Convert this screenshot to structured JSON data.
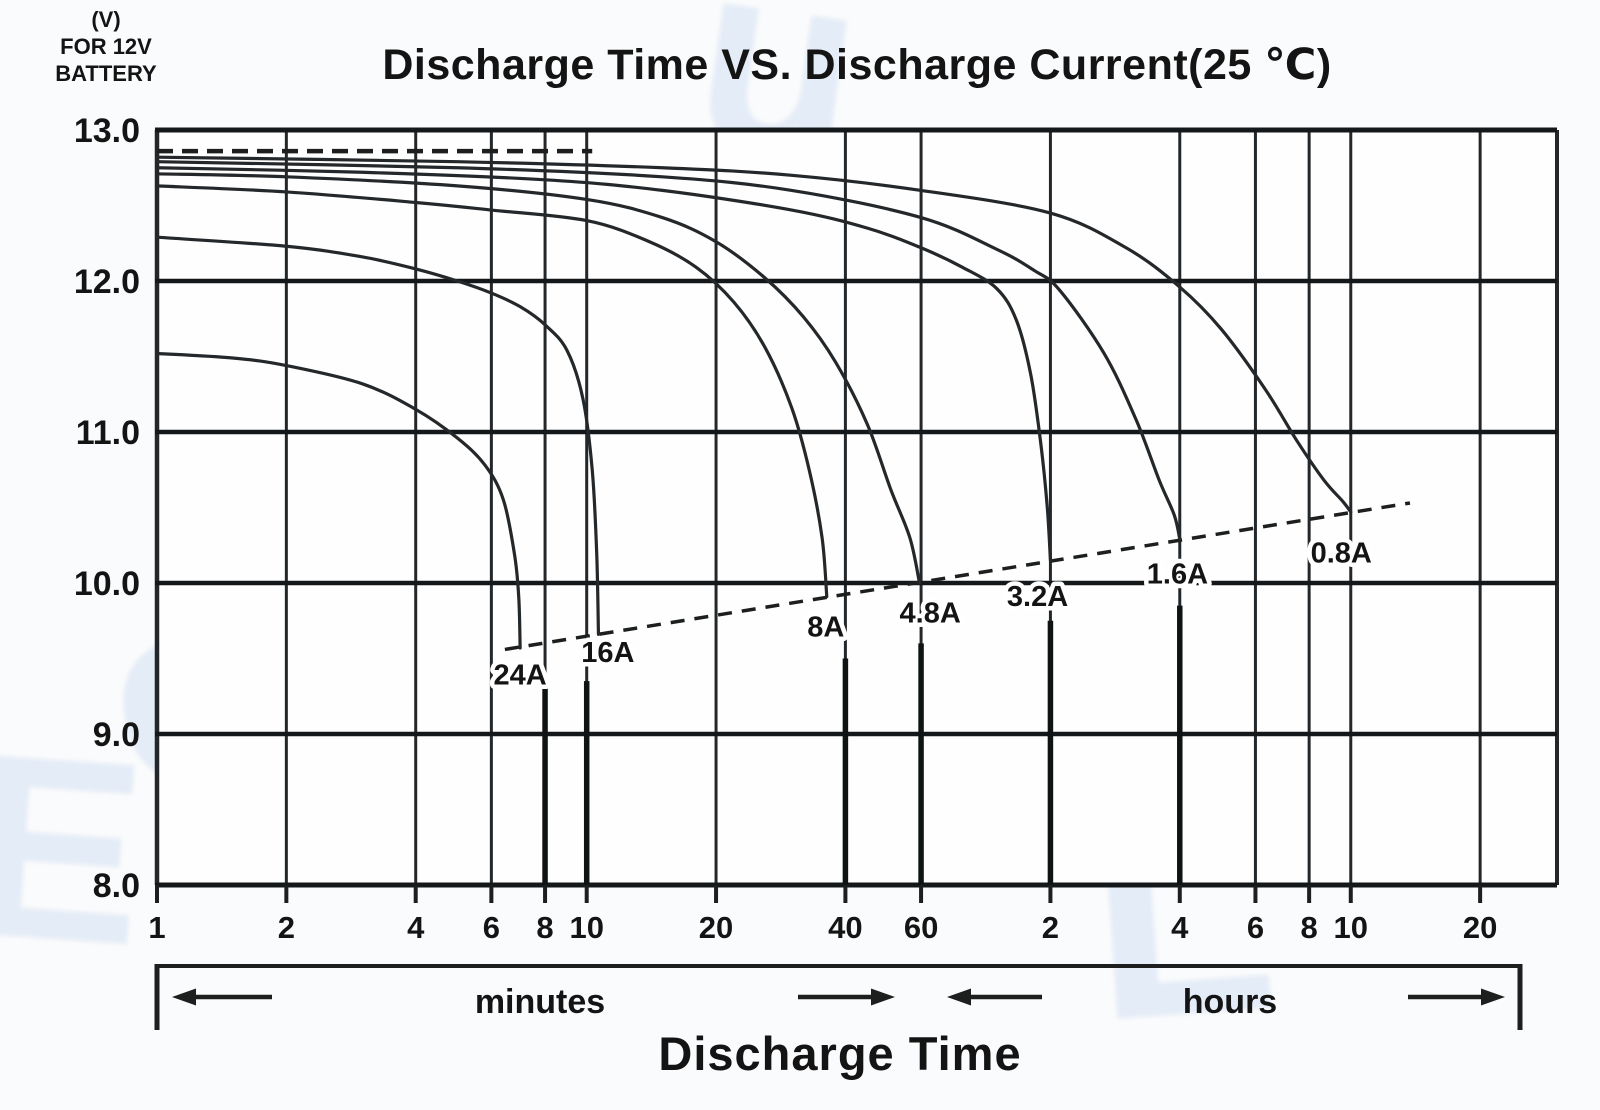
{
  "title": "Discharge Time VS. Discharge Current(25 ℃)",
  "y_axis": {
    "unit_lines": [
      "(V)",
      "FOR 12V",
      "BATTERY"
    ],
    "tick_labels": [
      "13.0",
      "12.0",
      "11.0",
      "10.0",
      "9.0",
      "8.0"
    ],
    "tick_values": [
      13.0,
      12.0,
      11.0,
      10.0,
      9.0,
      8.0
    ],
    "v_min": 8.0,
    "v_max": 13.0
  },
  "x_axis": {
    "title": "Discharge Time",
    "section_labels": {
      "minutes": "minutes",
      "hours": "hours"
    },
    "minute_ticks": [
      {
        "t": 1,
        "label": "1"
      },
      {
        "t": 2,
        "label": "2"
      },
      {
        "t": 4,
        "label": "4"
      },
      {
        "t": 6,
        "label": "6"
      },
      {
        "t": 8,
        "label": "8"
      },
      {
        "t": 10,
        "label": "10"
      },
      {
        "t": 20,
        "label": "20"
      },
      {
        "t": 40,
        "label": "40"
      },
      {
        "t": 60,
        "label": "60"
      }
    ],
    "hour_ticks": [
      {
        "t": 120,
        "label": "2"
      },
      {
        "t": 240,
        "label": "4"
      },
      {
        "t": 360,
        "label": "6"
      },
      {
        "t": 480,
        "label": "8"
      },
      {
        "t": 600,
        "label": "10"
      },
      {
        "t": 1200,
        "label": "20"
      }
    ]
  },
  "chart_data": {
    "type": "line",
    "x_scale": "log",
    "x_unit": "minutes",
    "x_range_minutes": [
      1,
      1810
    ],
    "y_unit": "V (for 12V battery)",
    "y_range": [
      8.0,
      13.0
    ],
    "grid": true,
    "series": [
      {
        "name": "24A",
        "label": "24A",
        "label_t": 7.0,
        "label_v": 9.4,
        "points": [
          [
            1,
            11.52
          ],
          [
            1.5,
            11.49
          ],
          [
            2,
            11.44
          ],
          [
            3,
            11.32
          ],
          [
            4,
            11.15
          ],
          [
            5,
            10.96
          ],
          [
            5.8,
            10.78
          ],
          [
            6.4,
            10.55
          ],
          [
            6.8,
            10.18
          ],
          [
            6.95,
            9.9
          ],
          [
            7.0,
            9.57
          ]
        ]
      },
      {
        "name": "16A",
        "label": "16A",
        "label_t": 11.2,
        "label_v": 9.55,
        "points": [
          [
            1,
            12.29
          ],
          [
            2,
            12.23
          ],
          [
            3,
            12.16
          ],
          [
            4,
            12.08
          ],
          [
            5,
            12.0
          ],
          [
            6,
            11.92
          ],
          [
            7,
            11.83
          ],
          [
            8,
            11.71
          ],
          [
            9,
            11.54
          ],
          [
            9.8,
            11.22
          ],
          [
            10.3,
            10.75
          ],
          [
            10.55,
            10.2
          ],
          [
            10.65,
            9.66
          ]
        ]
      },
      {
        "name": "8A",
        "label": "8A",
        "label_t": 36,
        "label_v": 9.72,
        "points": [
          [
            1,
            12.63
          ],
          [
            2,
            12.59
          ],
          [
            4,
            12.52
          ],
          [
            6,
            12.47
          ],
          [
            10,
            12.4
          ],
          [
            14,
            12.26
          ],
          [
            18,
            12.09
          ],
          [
            22,
            11.86
          ],
          [
            26,
            11.56
          ],
          [
            30,
            11.16
          ],
          [
            33,
            10.74
          ],
          [
            35.3,
            10.3
          ],
          [
            36.2,
            9.91
          ]
        ]
      },
      {
        "name": "4.8A",
        "label": "4.8A",
        "label_t": 63,
        "label_v": 9.81,
        "points": [
          [
            1,
            12.71
          ],
          [
            2,
            12.69
          ],
          [
            5,
            12.63
          ],
          [
            10,
            12.54
          ],
          [
            15,
            12.42
          ],
          [
            20,
            12.26
          ],
          [
            26,
            12.02
          ],
          [
            32,
            11.76
          ],
          [
            38,
            11.46
          ],
          [
            45,
            11.05
          ],
          [
            51,
            10.62
          ],
          [
            56.5,
            10.3
          ],
          [
            59.5,
            10.0
          ]
        ]
      },
      {
        "name": "3.2A",
        "label": "3.2A",
        "label_t": 112,
        "label_v": 9.92,
        "points": [
          [
            1,
            12.75
          ],
          [
            3,
            12.72
          ],
          [
            8,
            12.67
          ],
          [
            15,
            12.6
          ],
          [
            30,
            12.47
          ],
          [
            45,
            12.35
          ],
          [
            60,
            12.22
          ],
          [
            75,
            12.09
          ],
          [
            90,
            11.95
          ],
          [
            100,
            11.74
          ],
          [
            108,
            11.38
          ],
          [
            114,
            10.92
          ],
          [
            118,
            10.5
          ],
          [
            120,
            10.15
          ]
        ]
      },
      {
        "name": "1.6A",
        "label": "1.6A",
        "label_t": 237,
        "label_v": 10.07,
        "points": [
          [
            1,
            12.79
          ],
          [
            5,
            12.75
          ],
          [
            15,
            12.69
          ],
          [
            30,
            12.6
          ],
          [
            60,
            12.42
          ],
          [
            90,
            12.21
          ],
          [
            110,
            12.07
          ],
          [
            126,
            11.94
          ],
          [
            160,
            11.52
          ],
          [
            190,
            11.08
          ],
          [
            215,
            10.68
          ],
          [
            233,
            10.45
          ],
          [
            240,
            10.29
          ]
        ]
      },
      {
        "name": "0.8A",
        "label": "0.8A",
        "label_t": 570,
        "label_v": 10.21,
        "points": [
          [
            1,
            12.82
          ],
          [
            5,
            12.79
          ],
          [
            15,
            12.75
          ],
          [
            30,
            12.7
          ],
          [
            60,
            12.6
          ],
          [
            120,
            12.45
          ],
          [
            180,
            12.22
          ],
          [
            240,
            11.96
          ],
          [
            300,
            11.68
          ],
          [
            380,
            11.28
          ],
          [
            450,
            10.94
          ],
          [
            520,
            10.68
          ],
          [
            575,
            10.54
          ],
          [
            600,
            10.47
          ]
        ]
      }
    ],
    "cutoff_dashed_line": {
      "points": [
        [
          6.45,
          9.56
        ],
        [
          824,
          10.53
        ]
      ]
    },
    "top_dashed_line": {
      "v": 12.86,
      "t_start": 1,
      "t_end": 10.3
    },
    "emphasis_ticks": [
      {
        "t": 8,
        "v_top": 9.35
      },
      {
        "t": 10,
        "v_top": 9.35
      },
      {
        "t": 40,
        "v_top": 9.5
      },
      {
        "t": 60,
        "v_top": 9.6
      },
      {
        "t": 120,
        "v_top": 9.75
      },
      {
        "t": 240,
        "v_top": 9.85
      }
    ]
  },
  "watermark": {
    "letters": [
      "y",
      "U",
      "c",
      "E",
      "L",
      "u"
    ]
  },
  "colors": {
    "ink": "#1c1f1e",
    "grid_h": "#15181a",
    "grid_v": "#23272a",
    "curve": "#25282a",
    "background": "#fafbfc",
    "plot_fill": "#fefefe",
    "watermark": "rgba(150,182,228,0.22)"
  }
}
